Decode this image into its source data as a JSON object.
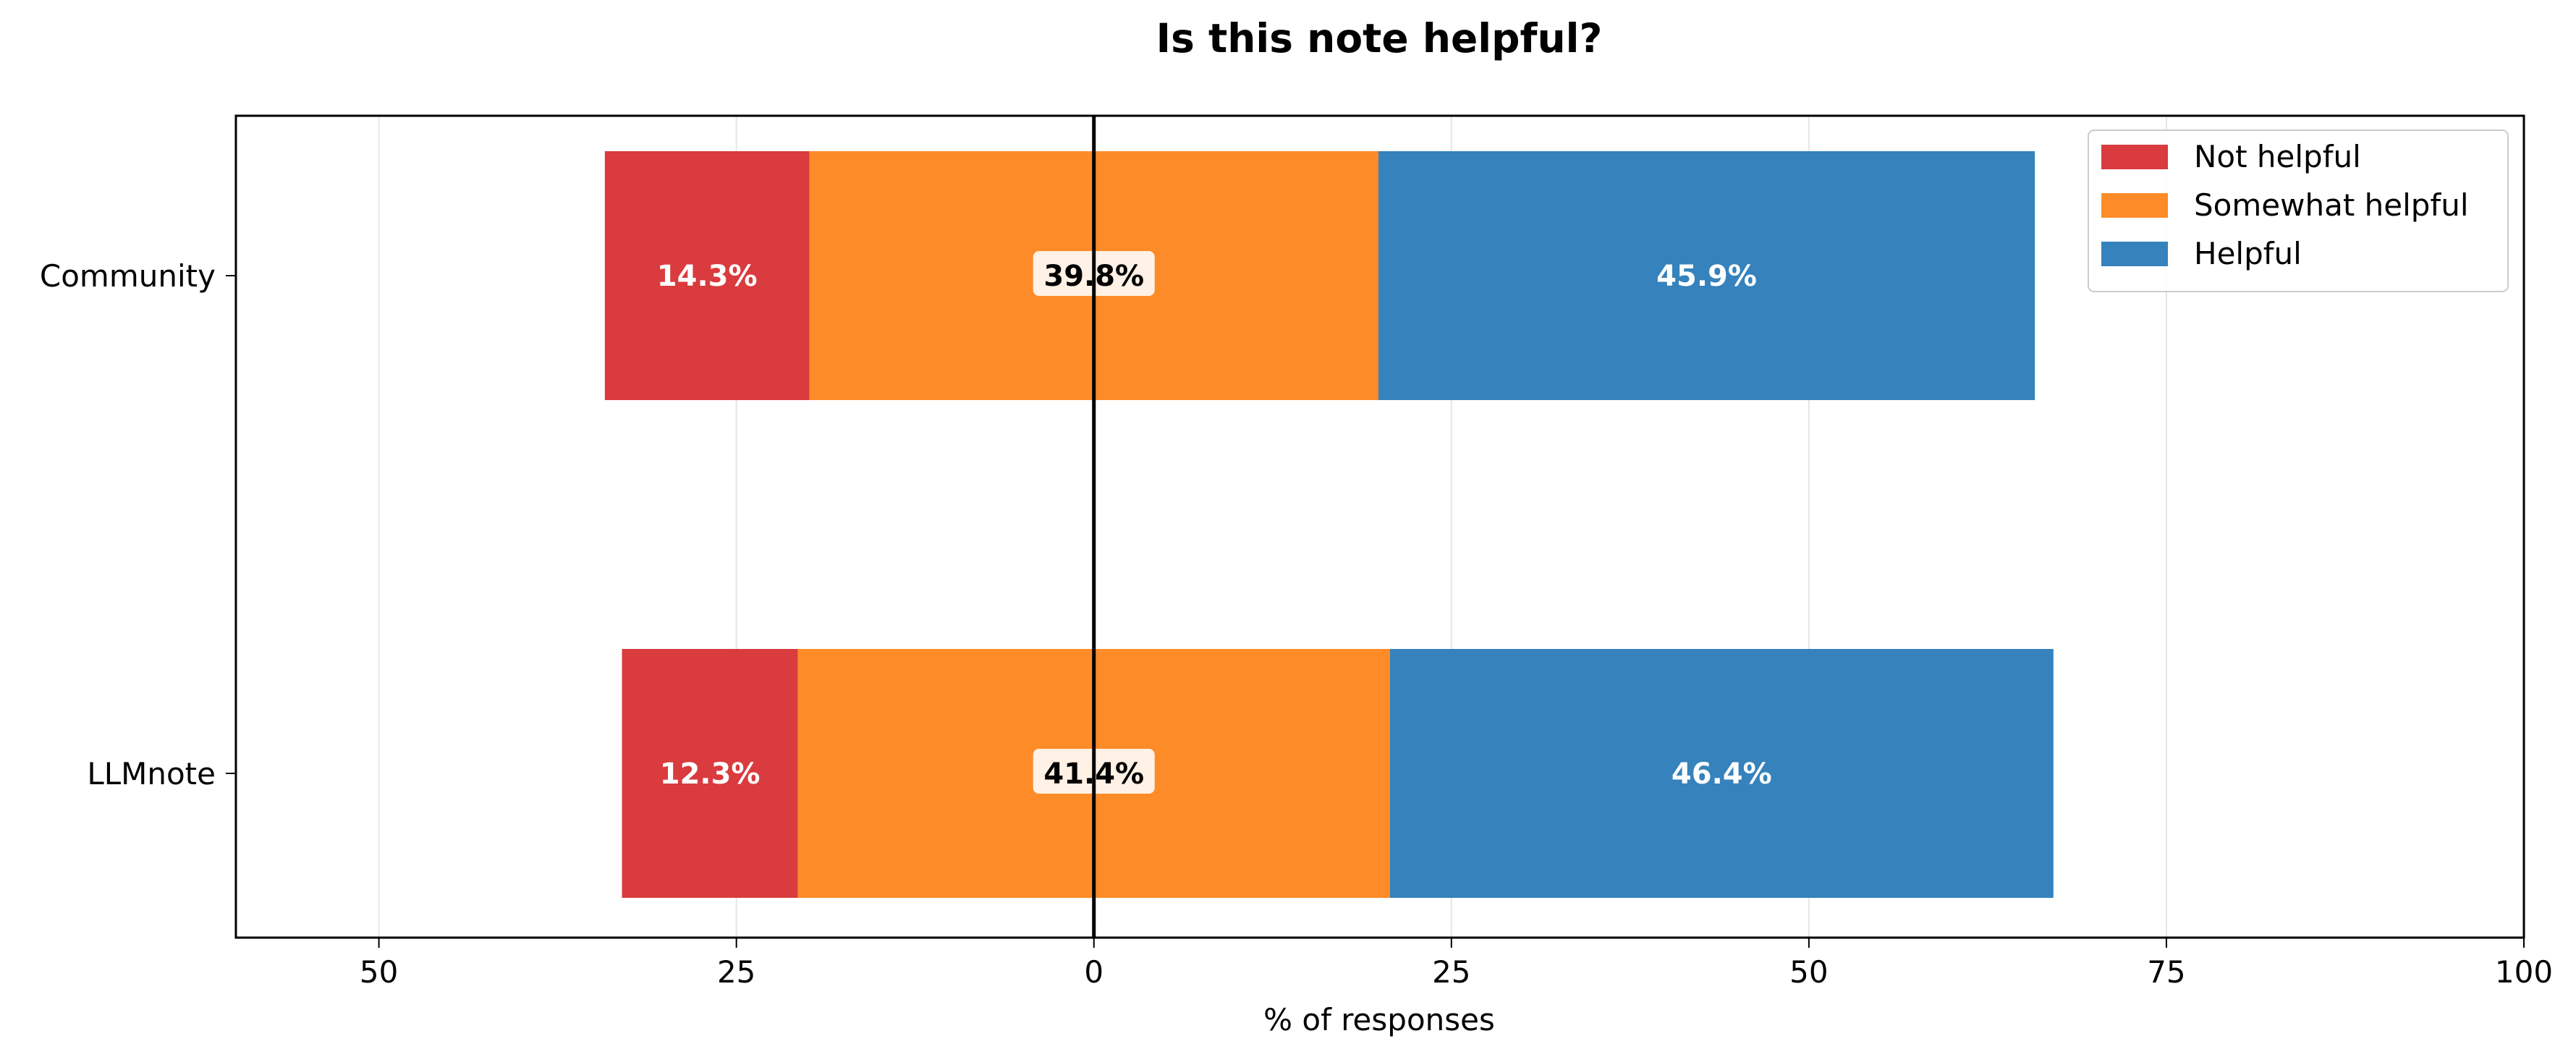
{
  "chart_data": {
    "type": "bar",
    "orientation": "horizontal",
    "stacking": "diverging",
    "title": "Is this note helpful?",
    "xlabel": "% of responses",
    "ylabel": "",
    "xlim": [
      -60,
      100
    ],
    "xticks": [
      -50,
      -25,
      0,
      25,
      50,
      75,
      100
    ],
    "xtick_labels": [
      "50",
      "25",
      "0",
      "25",
      "50",
      "75",
      "100"
    ],
    "categories": [
      "Community",
      "LLMnote"
    ],
    "series": [
      {
        "name": "Not helpful",
        "color": "#d93b3e",
        "label_color": "#ffffff",
        "values": [
          14.3,
          12.3
        ],
        "labels": [
          "14.3%",
          "12.3%"
        ]
      },
      {
        "name": "Somewhat helpful",
        "color": "#fd8b28",
        "label_color": "#000000",
        "values": [
          39.8,
          41.4
        ],
        "labels": [
          "39.8%",
          "41.4%"
        ]
      },
      {
        "name": "Helpful",
        "color": "#3582bc",
        "label_color": "#ffffff",
        "values": [
          45.9,
          46.4
        ],
        "labels": [
          "45.9%",
          "46.4%"
        ]
      }
    ],
    "grid": {
      "x": true,
      "y": false
    },
    "zero_line": true,
    "legend_position": "top-right"
  }
}
